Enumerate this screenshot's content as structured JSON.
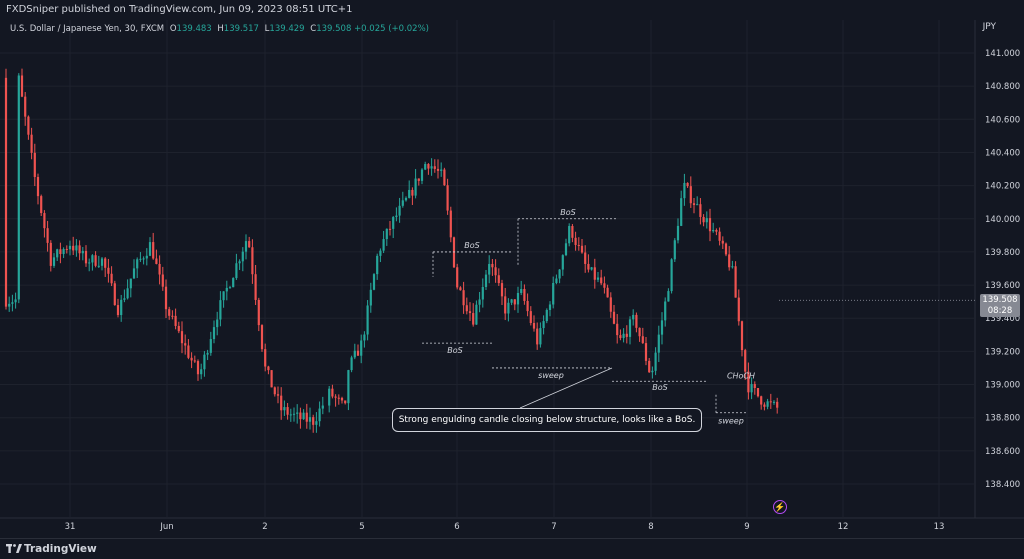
{
  "header": {
    "publisher": "FXDSniper published on TradingView.com, Jun 09, 2023 08:51 UTC+1"
  },
  "legend": {
    "symbol": "U.S. Dollar / Japanese Yen, 30, FXCM",
    "open_label": "O",
    "open": "139.483",
    "high_label": "H",
    "high": "139.517",
    "low_label": "L",
    "low": "139.429",
    "close_label": "C",
    "close": "139.508",
    "change": "+0.025 (+0.02%)"
  },
  "price_axis": {
    "currency": "JPY",
    "ticks": [
      "141.000",
      "140.800",
      "140.600",
      "140.400",
      "140.200",
      "140.000",
      "139.800",
      "139.600",
      "139.400",
      "139.200",
      "139.000",
      "138.800",
      "138.600",
      "138.400"
    ]
  },
  "time_axis": {
    "ticks": [
      "31",
      "Jun",
      "2",
      "5",
      "6",
      "7",
      "8",
      "9",
      "12",
      "13"
    ]
  },
  "price_tag": {
    "price": "139.508",
    "countdown": "08:28"
  },
  "callout": {
    "text": "Strong engulding candle closing below structure, looks like a BoS."
  },
  "footer": {
    "brand": "TradingView"
  },
  "colors": {
    "up": "#26a69a",
    "down": "#ef5350",
    "background": "#131722",
    "grid": "#1e222d",
    "text": "#d1d4dc",
    "alert": "#b24bf3"
  },
  "chart_data": {
    "type": "candlestick",
    "symbol": "USDJPY",
    "timeframe": "30",
    "ylim": [
      138.25,
      141.2
    ],
    "grid": true,
    "path": [
      [
        "May 30 12:00",
        140.85
      ],
      [
        "May 30 16:00",
        140.25
      ],
      [
        "May 30 20:00",
        139.75
      ],
      [
        "May 31 00:00",
        139.85
      ],
      [
        "May 31 04:00",
        139.75
      ],
      [
        "May 31 08:00",
        139.75
      ],
      [
        "May 31 12:00",
        139.45
      ],
      [
        "May 31 16:00",
        139.7
      ],
      [
        "May 31 20:00",
        139.85
      ],
      [
        "Jun 1 00:00",
        139.45
      ],
      [
        "Jun 1 04:00",
        139.25
      ],
      [
        "Jun 1 08:00",
        139.05
      ],
      [
        "Jun 1 12:00",
        139.4
      ],
      [
        "Jun 1 16:00",
        139.65
      ],
      [
        "Jun 1 20:00",
        139.9
      ],
      [
        "Jun 2 00:00",
        139.1
      ],
      [
        "Jun 2 04:00",
        138.85
      ],
      [
        "Jun 2 08:00",
        138.8
      ],
      [
        "Jun 2 12:00",
        138.78
      ],
      [
        "Jun 2 16:00",
        138.95
      ],
      [
        "Jun 2 20:00",
        138.85
      ],
      [
        "Jun 3 00:00",
        139.0
      ],
      [
        "Jun 5 00:00",
        139.25
      ],
      [
        "Jun 5 04:00",
        139.8
      ],
      [
        "Jun 5 08:00",
        140.0
      ],
      [
        "Jun 5 12:00",
        140.15
      ],
      [
        "Jun 5 16:00",
        140.35
      ],
      [
        "Jun 5 20:00",
        140.25
      ],
      [
        "Jun 6 00:00",
        139.6
      ],
      [
        "Jun 6 04:00",
        139.4
      ],
      [
        "Jun 6 08:00",
        139.75
      ],
      [
        "Jun 6 12:00",
        139.45
      ],
      [
        "Jun 6 16:00",
        139.55
      ],
      [
        "Jun 6 20:00",
        139.25
      ],
      [
        "Jun 7 00:00",
        139.6
      ],
      [
        "Jun 7 04:00",
        139.95
      ],
      [
        "Jun 7 08:00",
        139.7
      ],
      [
        "Jun 7 12:00",
        139.6
      ],
      [
        "Jun 7 16:00",
        139.25
      ],
      [
        "Jun 7 20:00",
        139.4
      ],
      [
        "Jun 8 00:00",
        139.05
      ],
      [
        "Jun 8 04:00",
        139.55
      ],
      [
        "Jun 8 08:00",
        140.2
      ],
      [
        "Jun 8 12:00",
        140.05
      ],
      [
        "Jun 8 16:00",
        139.9
      ],
      [
        "Jun 8 20:00",
        139.7
      ],
      [
        "Jun 9 00:00",
        139.0
      ],
      [
        "Jun 9 04:00",
        138.9
      ],
      [
        "Jun 9 08:00",
        138.85
      ],
      [
        "Jun 9 12:00",
        139.2
      ],
      [
        "Jun 9 16:00",
        139.4
      ],
      [
        "Jun 9 20:00",
        139.51
      ]
    ],
    "annotations": [
      {
        "label": "BoS",
        "price": 139.8
      },
      {
        "label": "BoS",
        "price": 139.25
      },
      {
        "label": "BoS",
        "price": 140.0
      },
      {
        "label": "sweep",
        "price": 139.1
      },
      {
        "label": "BoS",
        "price": 139.02
      },
      {
        "label": "CHoCH",
        "price": 139.0
      },
      {
        "label": "sweep",
        "price": 138.83
      }
    ]
  }
}
